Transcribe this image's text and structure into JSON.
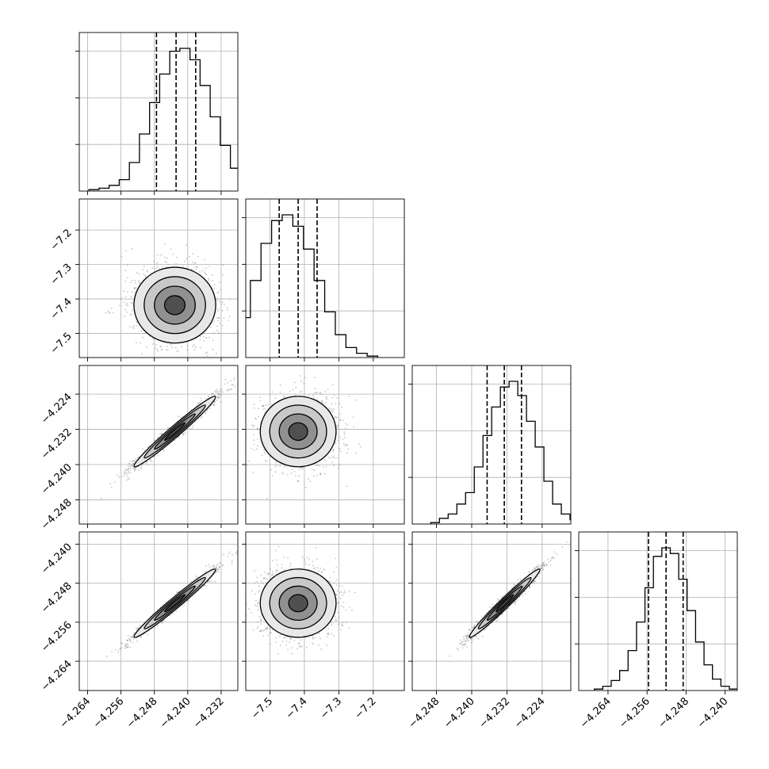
{
  "chart_data": {
    "type": "corner",
    "n_params": 4,
    "colors": {
      "line": "#000000",
      "grid": "#b0b0b0",
      "scatter": "#808080",
      "background": "#ffffff"
    },
    "grid": true,
    "params": [
      {
        "range": [
          -4.266,
          -4.228
        ],
        "ticks": [
          -4.264,
          -4.256,
          -4.248,
          -4.24,
          -4.232
        ],
        "tick_labels": [
          "−4.264",
          "−4.256",
          "−4.248",
          "−4.240",
          "−4.232"
        ],
        "mean": -4.2431,
        "sigma": 0.0049
      },
      {
        "range": [
          -7.57,
          -7.11
        ],
        "ticks": [
          -7.5,
          -7.4,
          -7.3,
          -7.2
        ],
        "tick_labels": [
          "−7.5",
          "−7.4",
          "−7.3",
          "−7.2"
        ],
        "mean": -7.418,
        "sigma": 0.055
      },
      {
        "range": [
          -4.2535,
          -4.2175
        ],
        "ticks": [
          -4.248,
          -4.24,
          -4.232,
          -4.224
        ],
        "tick_labels": [
          "−4.248",
          "−4.240",
          "−4.232",
          "−4.224"
        ],
        "mean": -4.2325,
        "sigma": 0.004
      },
      {
        "range": [
          -4.27,
          -4.2375
        ],
        "ticks": [
          -4.264,
          -4.256,
          -4.248,
          -4.24
        ],
        "tick_labels": [
          "−4.264",
          "−4.256",
          "−4.248",
          "−4.240"
        ],
        "mean": -4.2521,
        "sigma": 0.0035
      }
    ],
    "quantile_lines": [
      [
        -4.2475,
        -4.2428,
        -4.2381
      ],
      [
        -7.473,
        -7.418,
        -7.363
      ],
      [
        -4.2365,
        -4.2326,
        -4.2287
      ],
      [
        -4.2557,
        -4.2521,
        -4.2486
      ]
    ],
    "histograms": [
      {
        "bin_count": [
          1,
          2,
          4,
          8,
          20,
          40,
          62,
          82,
          98,
          100,
          92,
          74,
          52,
          32,
          16,
          7,
          4
        ]
      },
      {
        "bin_count": [
          4,
          12,
          28,
          54,
          80,
          96,
          100,
          92,
          76,
          54,
          32,
          16,
          7,
          3,
          1
        ]
      },
      {
        "bin_count": [
          1,
          4,
          7,
          14,
          22,
          40,
          62,
          82,
          96,
          100,
          90,
          72,
          54,
          30,
          14,
          7,
          3
        ]
      },
      {
        "bin_count": [
          1,
          3,
          7,
          14,
          28,
          48,
          72,
          94,
          100,
          96,
          78,
          56,
          34,
          18,
          8,
          3,
          1
        ]
      }
    ],
    "correlations": [
      [
        1,
        0,
        0.98,
        0.98
      ],
      [
        0,
        1,
        0,
        0
      ],
      [
        0.98,
        0,
        1,
        0.98
      ],
      [
        0.98,
        0,
        0.98,
        1
      ]
    ],
    "contour_sigmas": [
      0.5,
      1.0,
      1.5,
      2.0
    ],
    "axis_labels": [
      "",
      "",
      "",
      ""
    ]
  }
}
